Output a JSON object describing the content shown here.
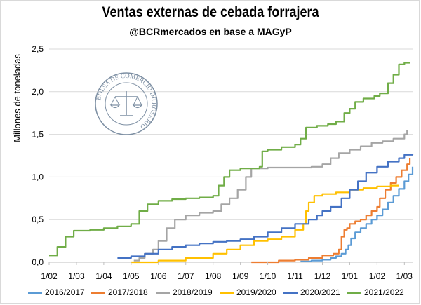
{
  "chart_data": {
    "type": "line",
    "title": "Ventas externas de cebada forrajera",
    "subtitle": "@BCRmercados en base a MAGyP",
    "ylabel": "Millones de toneladas",
    "xlabel": "",
    "ylim": [
      0,
      2.5
    ],
    "yticks": [
      "0,0",
      "0,5",
      "1,0",
      "1,5",
      "2,0",
      "2,5"
    ],
    "xlim": [
      0,
      13.3
    ],
    "xticks": [
      "1/02",
      "1/03",
      "1/04",
      "1/05",
      "1/06",
      "1/07",
      "1/08",
      "1/09",
      "1/10",
      "1/11",
      "1/12",
      "1/01",
      "1/02",
      "1/03"
    ],
    "grid": "horizontal",
    "legend_position": "bottom",
    "watermark": "BOLSA DE COMERCIO DE ROSARIO",
    "series": [
      {
        "name": "2016/2017",
        "color": "#5b9bd5",
        "points": [
          [
            9.2,
            0.01
          ],
          [
            9.6,
            0.02
          ],
          [
            10.0,
            0.03
          ],
          [
            10.3,
            0.05
          ],
          [
            10.5,
            0.07
          ],
          [
            10.7,
            0.1
          ],
          [
            10.85,
            0.15
          ],
          [
            10.95,
            0.2
          ],
          [
            11.05,
            0.28
          ],
          [
            11.2,
            0.35
          ],
          [
            11.4,
            0.4
          ],
          [
            11.6,
            0.45
          ],
          [
            11.8,
            0.5
          ],
          [
            12.0,
            0.55
          ],
          [
            12.2,
            0.62
          ],
          [
            12.4,
            0.7
          ],
          [
            12.6,
            0.78
          ],
          [
            12.8,
            0.86
          ],
          [
            13.0,
            0.95
          ],
          [
            13.15,
            1.03
          ],
          [
            13.3,
            1.12
          ]
        ]
      },
      {
        "name": "2017/2018",
        "color": "#ed7d31",
        "points": [
          [
            7.4,
            0.0
          ],
          [
            8.4,
            0.02
          ],
          [
            9.0,
            0.03
          ],
          [
            9.5,
            0.05
          ],
          [
            10.0,
            0.08
          ],
          [
            10.4,
            0.1
          ],
          [
            10.6,
            0.15
          ],
          [
            10.7,
            0.3
          ],
          [
            10.8,
            0.38
          ],
          [
            10.9,
            0.4
          ],
          [
            11.0,
            0.45
          ],
          [
            11.2,
            0.48
          ],
          [
            11.4,
            0.5
          ],
          [
            11.6,
            0.55
          ],
          [
            11.8,
            0.6
          ],
          [
            12.0,
            0.65
          ],
          [
            12.1,
            0.75
          ],
          [
            12.3,
            0.85
          ],
          [
            12.5,
            0.93
          ],
          [
            12.7,
            1.0
          ],
          [
            12.9,
            1.08
          ],
          [
            13.1,
            1.15
          ],
          [
            13.2,
            1.22
          ]
        ]
      },
      {
        "name": "2018/2019",
        "color": "#a5a5a5",
        "points": [
          [
            3.1,
            0.02
          ],
          [
            3.3,
            0.05
          ],
          [
            3.5,
            0.1
          ],
          [
            3.8,
            0.15
          ],
          [
            4.0,
            0.25
          ],
          [
            4.3,
            0.4
          ],
          [
            4.6,
            0.5
          ],
          [
            5.0,
            0.55
          ],
          [
            5.5,
            0.58
          ],
          [
            6.0,
            0.6
          ],
          [
            6.3,
            0.68
          ],
          [
            6.6,
            0.75
          ],
          [
            6.9,
            0.85
          ],
          [
            7.2,
            1.0
          ],
          [
            7.4,
            1.1
          ],
          [
            8.0,
            1.11
          ],
          [
            9.0,
            1.11
          ],
          [
            9.6,
            1.12
          ],
          [
            10.0,
            1.15
          ],
          [
            10.3,
            1.22
          ],
          [
            10.6,
            1.28
          ],
          [
            11.0,
            1.32
          ],
          [
            11.4,
            1.36
          ],
          [
            11.8,
            1.4
          ],
          [
            12.2,
            1.42
          ],
          [
            12.6,
            1.45
          ],
          [
            13.0,
            1.5
          ],
          [
            13.1,
            1.55
          ]
        ]
      },
      {
        "name": "2019/2020",
        "color": "#ffc000",
        "points": [
          [
            3.0,
            0.0
          ],
          [
            4.0,
            0.02
          ],
          [
            5.0,
            0.05
          ],
          [
            6.0,
            0.1
          ],
          [
            6.5,
            0.15
          ],
          [
            7.0,
            0.2
          ],
          [
            7.5,
            0.25
          ],
          [
            8.0,
            0.27
          ],
          [
            8.5,
            0.3
          ],
          [
            9.0,
            0.38
          ],
          [
            9.3,
            0.45
          ],
          [
            9.4,
            0.6
          ],
          [
            9.5,
            0.7
          ],
          [
            9.7,
            0.78
          ],
          [
            10.0,
            0.8
          ],
          [
            10.5,
            0.82
          ],
          [
            11.0,
            0.85
          ],
          [
            11.5,
            0.87
          ],
          [
            12.0,
            0.89
          ],
          [
            12.5,
            0.9
          ],
          [
            12.8,
            0.9
          ]
        ]
      },
      {
        "name": "2020/2021",
        "color": "#4472c4",
        "points": [
          [
            2.5,
            0.05
          ],
          [
            3.0,
            0.07
          ],
          [
            3.5,
            0.1
          ],
          [
            4.0,
            0.15
          ],
          [
            4.5,
            0.18
          ],
          [
            5.0,
            0.2
          ],
          [
            5.5,
            0.22
          ],
          [
            6.0,
            0.24
          ],
          [
            6.5,
            0.25
          ],
          [
            7.0,
            0.27
          ],
          [
            7.5,
            0.3
          ],
          [
            8.0,
            0.35
          ],
          [
            8.5,
            0.4
          ],
          [
            9.0,
            0.45
          ],
          [
            9.5,
            0.5
          ],
          [
            9.8,
            0.55
          ],
          [
            10.0,
            0.6
          ],
          [
            10.3,
            0.65
          ],
          [
            10.7,
            0.75
          ],
          [
            11.0,
            0.85
          ],
          [
            11.3,
            0.95
          ],
          [
            11.6,
            1.05
          ],
          [
            12.0,
            1.12
          ],
          [
            12.4,
            1.18
          ],
          [
            12.8,
            1.22
          ],
          [
            13.0,
            1.26
          ],
          [
            13.3,
            1.27
          ]
        ]
      },
      {
        "name": "2021/2022",
        "color": "#70ad47",
        "points": [
          [
            0.0,
            0.08
          ],
          [
            0.3,
            0.18
          ],
          [
            0.6,
            0.3
          ],
          [
            0.9,
            0.37
          ],
          [
            1.5,
            0.38
          ],
          [
            2.0,
            0.4
          ],
          [
            2.5,
            0.42
          ],
          [
            3.0,
            0.45
          ],
          [
            3.3,
            0.6
          ],
          [
            3.6,
            0.68
          ],
          [
            4.0,
            0.72
          ],
          [
            4.5,
            0.74
          ],
          [
            5.0,
            0.75
          ],
          [
            5.5,
            0.76
          ],
          [
            6.0,
            0.78
          ],
          [
            6.2,
            0.9
          ],
          [
            6.4,
            1.0
          ],
          [
            6.6,
            1.08
          ],
          [
            7.0,
            1.1
          ],
          [
            7.5,
            1.1
          ],
          [
            7.7,
            1.12
          ],
          [
            7.8,
            1.3
          ],
          [
            8.0,
            1.32
          ],
          [
            8.5,
            1.35
          ],
          [
            9.0,
            1.38
          ],
          [
            9.2,
            1.45
          ],
          [
            9.4,
            1.58
          ],
          [
            9.8,
            1.6
          ],
          [
            10.2,
            1.62
          ],
          [
            10.5,
            1.65
          ],
          [
            10.8,
            1.75
          ],
          [
            11.0,
            1.8
          ],
          [
            11.2,
            1.88
          ],
          [
            11.5,
            1.92
          ],
          [
            11.9,
            1.95
          ],
          [
            12.1,
            1.98
          ],
          [
            12.4,
            2.1
          ],
          [
            12.6,
            2.2
          ],
          [
            12.8,
            2.32
          ],
          [
            13.0,
            2.34
          ],
          [
            13.2,
            2.34
          ]
        ]
      }
    ]
  }
}
